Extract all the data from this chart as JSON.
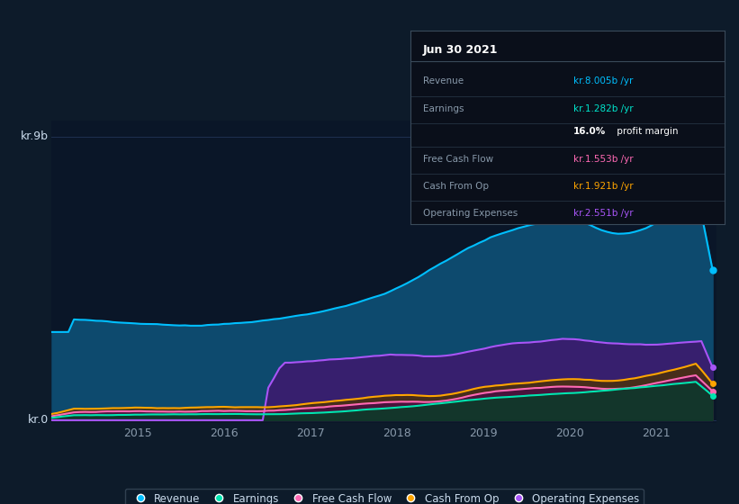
{
  "bg_color": "#0d1b2a",
  "plot_bg_color": "#0a1628",
  "grid_color": "#1e3050",
  "title_box_bg": "#0a0f1a",
  "title_box_border": "#3a4a5a",
  "date_label": "Jun 30 2021",
  "info_rows": [
    {
      "label": "Revenue",
      "value": "kr.8.005b",
      "suffix": " /yr",
      "value_color": "#00bfff",
      "bold_val": false
    },
    {
      "label": "Earnings",
      "value": "kr.1.282b",
      "suffix": " /yr",
      "value_color": "#00e5cc",
      "bold_val": false
    },
    {
      "label": "",
      "value": "16.0%",
      "suffix": " profit margin",
      "value_color": "#ffffff",
      "bold_val": true
    },
    {
      "label": "Free Cash Flow",
      "value": "kr.1.553b",
      "suffix": " /yr",
      "value_color": "#ff69b4",
      "bold_val": false
    },
    {
      "label": "Cash From Op",
      "value": "kr.1.921b",
      "suffix": " /yr",
      "value_color": "#ffa500",
      "bold_val": false
    },
    {
      "label": "Operating Expenses",
      "value": "kr.2.551b",
      "suffix": " /yr",
      "value_color": "#a855f7",
      "bold_val": false
    }
  ],
  "ylabel_top": "kr.9b",
  "ylabel_bottom": "kr.0",
  "xlabel_ticks": [
    2015,
    2016,
    2017,
    2018,
    2019,
    2020,
    2021
  ],
  "xlabel_labels": [
    "2015",
    "2016",
    "2017",
    "2018",
    "2019",
    "2020",
    "2021"
  ],
  "xlim": [
    2014.0,
    2021.7
  ],
  "ylim": [
    -0.1,
    9.5
  ],
  "series": {
    "revenue": {
      "color": "#00bfff",
      "fill_color": "#0d4a6e",
      "label": "Revenue"
    },
    "earnings": {
      "color": "#00e5b0",
      "fill_color": "#0d3a2a",
      "label": "Earnings"
    },
    "free_cash_flow": {
      "color": "#ff69b4",
      "fill_color": "#4a1040",
      "label": "Free Cash Flow"
    },
    "cash_from_op": {
      "color": "#ffa500",
      "fill_color": "#4a3010",
      "label": "Cash From Op"
    },
    "operating_expenses": {
      "color": "#a855f7",
      "fill_color": "#3d1a6e",
      "label": "Operating Expenses"
    }
  },
  "legend_bg": "#0d1b2a",
  "legend_border": "#3a4a5a",
  "tick_color": "#8899aa",
  "label_color": "#ccddee"
}
